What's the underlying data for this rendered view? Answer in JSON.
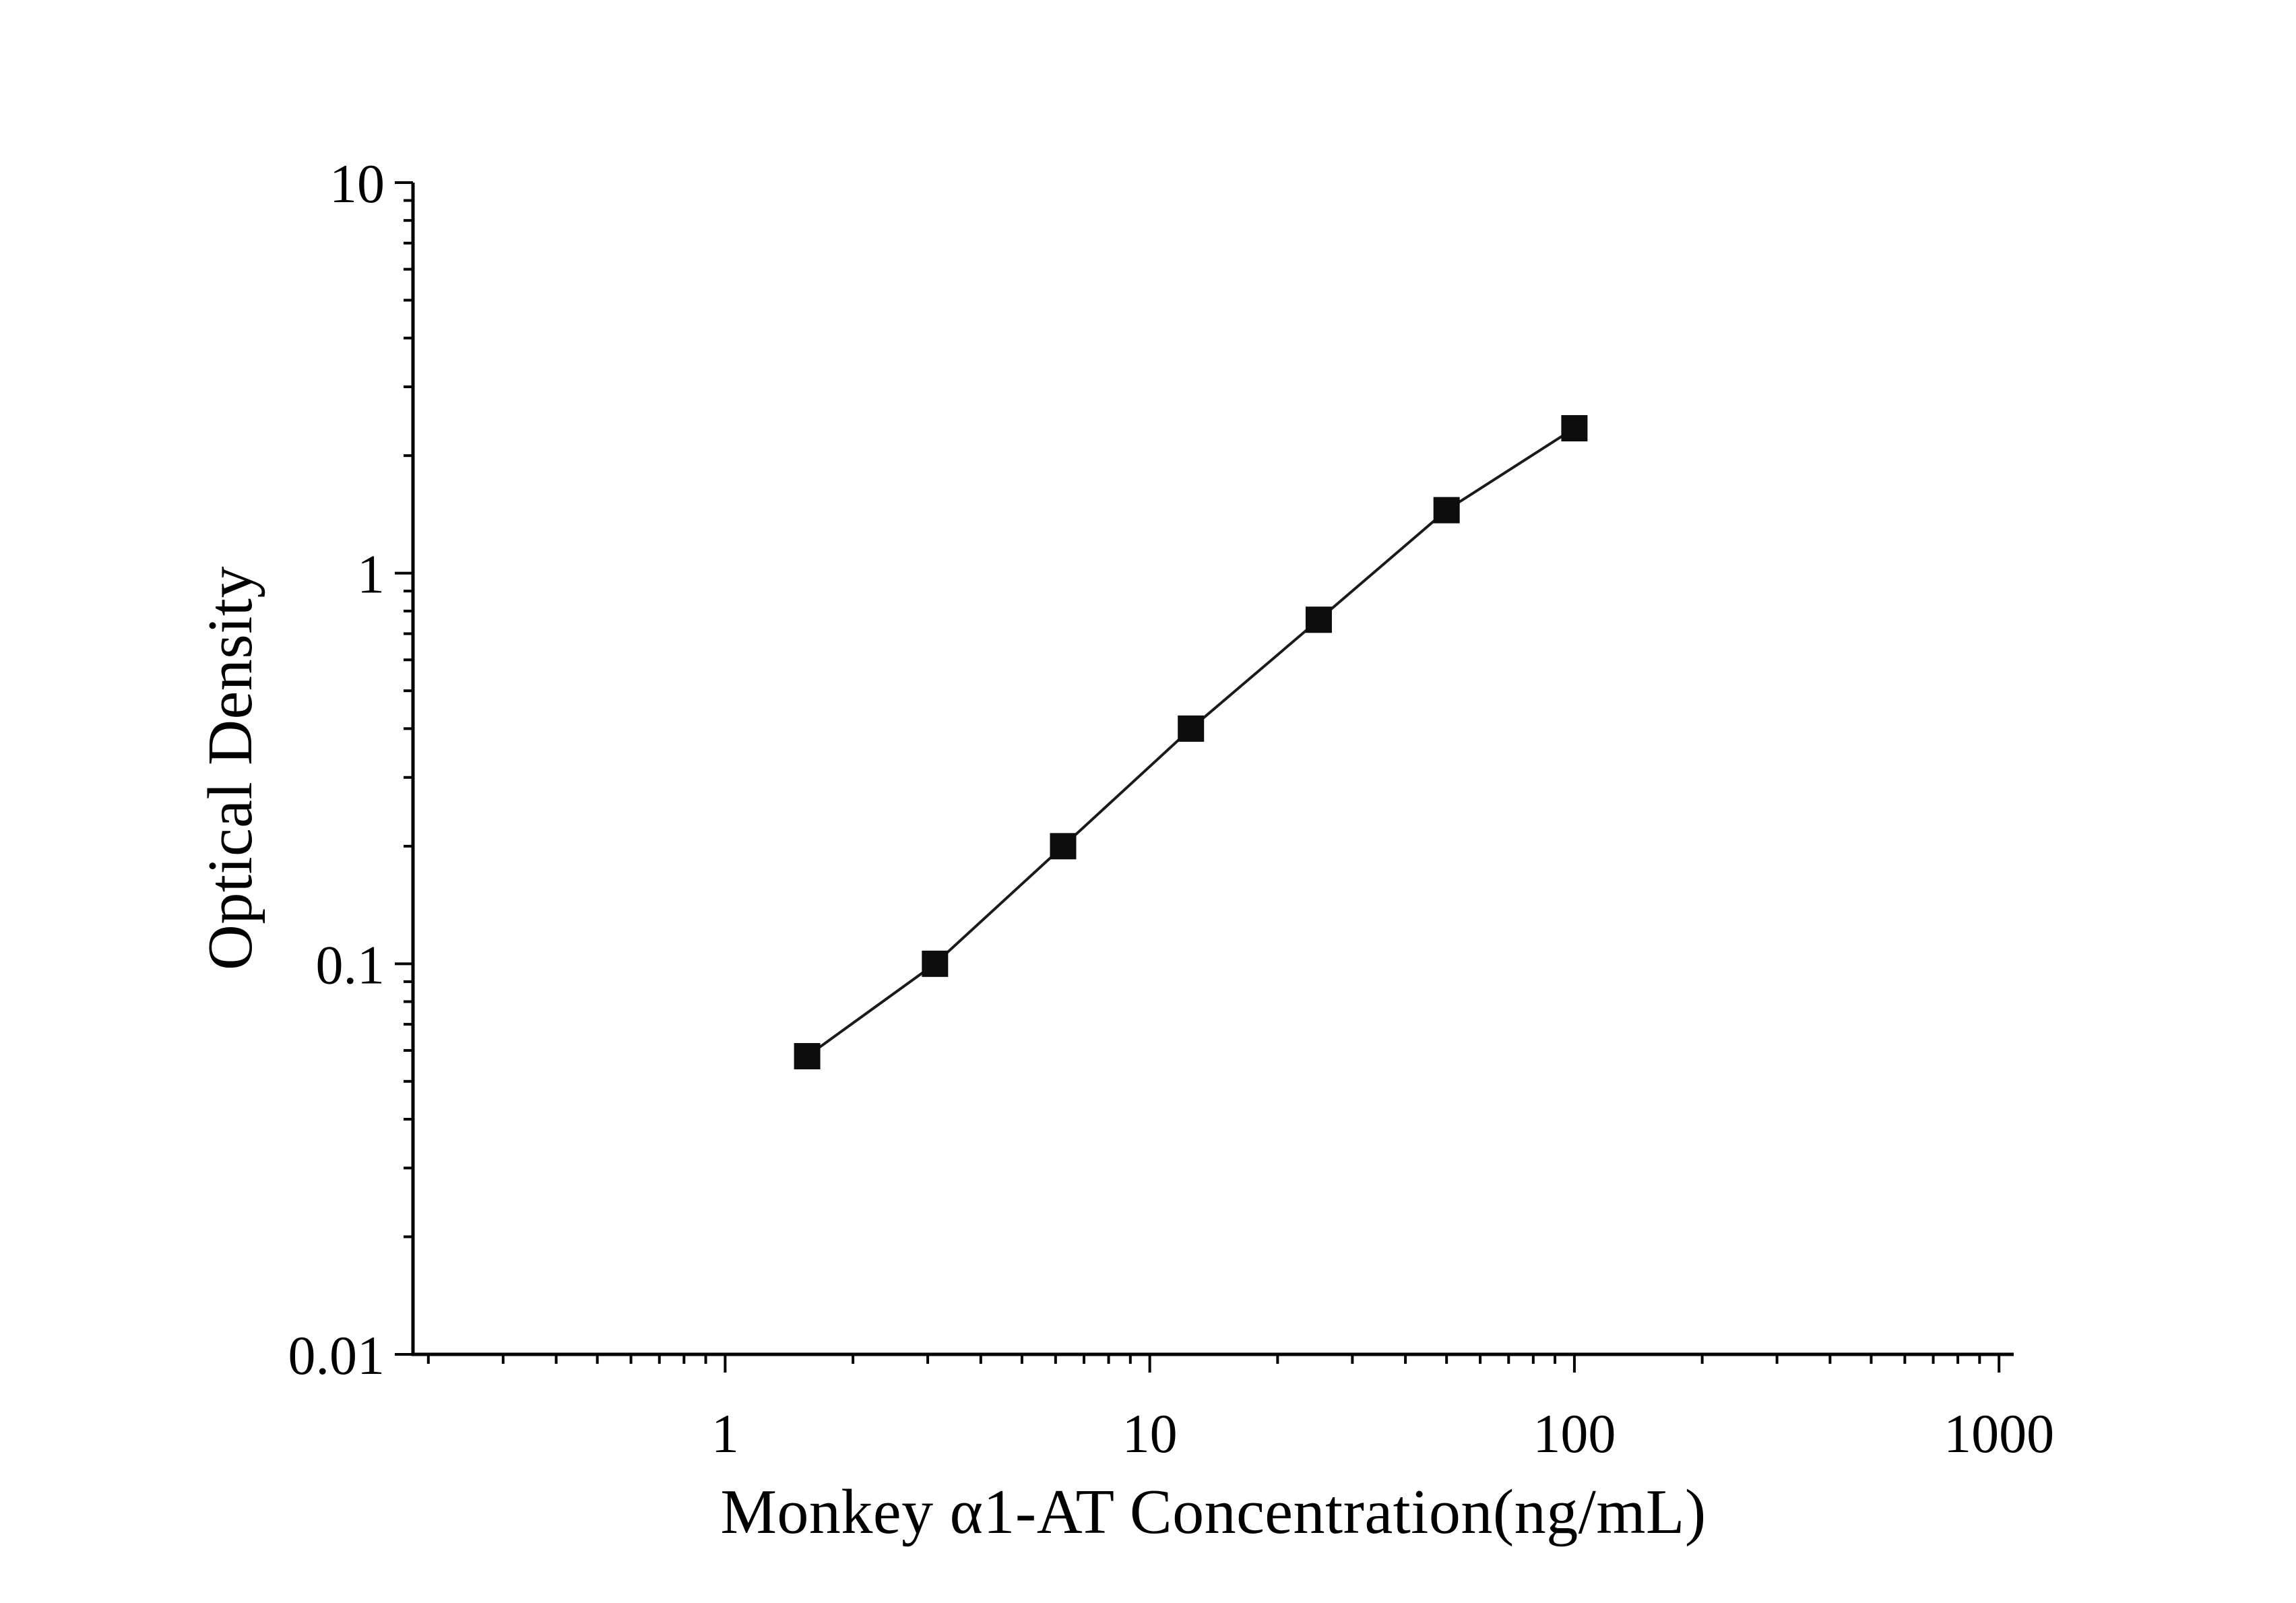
{
  "chart_data": {
    "type": "line",
    "title": "",
    "xlabel": "Monkey α1-AT Concentration(ng/mL)",
    "ylabel": "Optical Density",
    "x_scale": "log",
    "y_scale": "log",
    "xlim": [
      0.184,
      1083
    ],
    "ylim": [
      0.01,
      10
    ],
    "x_ticks": [
      1,
      10,
      100,
      1000
    ],
    "x_tick_labels": [
      "1",
      "10",
      "100",
      "1000"
    ],
    "y_ticks": [
      0.01,
      0.1,
      1,
      10
    ],
    "y_tick_labels": [
      "0.01",
      "0.1",
      "1",
      "10"
    ],
    "grid": false,
    "legend": "none",
    "series": [
      {
        "name": "standard-curve",
        "marker": "square",
        "marker_color": "#0d0d0d",
        "line_color": "#1a1a1a",
        "x": [
          1.56,
          3.12,
          6.25,
          12.5,
          25,
          50,
          100
        ],
        "y": [
          0.058,
          0.1,
          0.2,
          0.4,
          0.76,
          1.45,
          2.35
        ]
      }
    ]
  },
  "colors": {
    "background": "#ffffff",
    "axis": "#000000"
  }
}
